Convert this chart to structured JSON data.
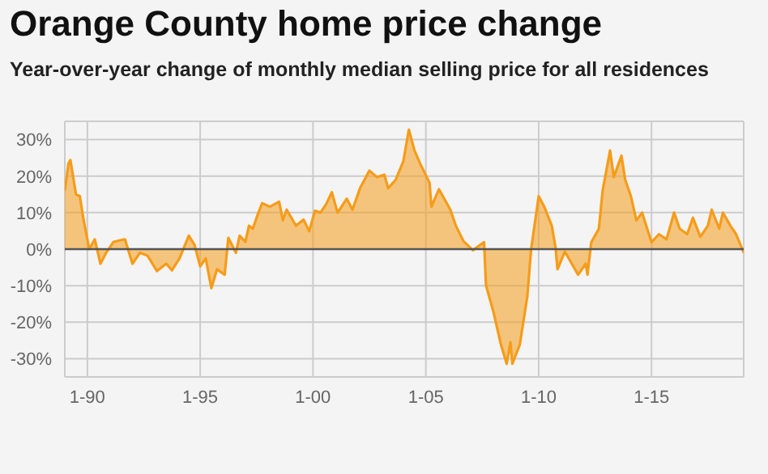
{
  "chart_data": {
    "type": "area",
    "title": "Orange County home price change",
    "subtitle": "Year-over-year change of monthly median selling price for all residences",
    "x": [
      "1989-01",
      "1989-03",
      "1989-04",
      "1989-07",
      "1989-09",
      "1989-11",
      "1990-02",
      "1990-05",
      "1990-08",
      "1990-11",
      "1991-03",
      "1991-09",
      "1992-01",
      "1992-05",
      "1992-09",
      "1993-02",
      "1993-07",
      "1993-10",
      "1994-02",
      "1994-07",
      "1994-10",
      "1995-01",
      "1995-04",
      "1995-07",
      "1995-10",
      "1996-02",
      "1996-04",
      "1996-08",
      "1996-10",
      "1997-01",
      "1997-03",
      "1997-05",
      "1997-08",
      "1997-10",
      "1998-02",
      "1998-07",
      "1998-09",
      "1998-11",
      "1999-04",
      "1999-08",
      "1999-11",
      "2000-02",
      "2000-05",
      "2000-08",
      "2000-11",
      "2001-02",
      "2001-07",
      "2001-10",
      "2002-02",
      "2002-07",
      "2002-11",
      "2003-03",
      "2003-05",
      "2003-09",
      "2004-01",
      "2004-04",
      "2004-07",
      "2004-10",
      "2005-03",
      "2005-04",
      "2005-08",
      "2006-02",
      "2006-05",
      "2006-09",
      "2007-02",
      "2007-08",
      "2007-09",
      "2008-01",
      "2008-05",
      "2008-08",
      "2008-10",
      "2008-11",
      "2009-03",
      "2009-07",
      "2009-09",
      "2010-01",
      "2010-04",
      "2010-08",
      "2010-10",
      "2010-11",
      "2011-03",
      "2011-05",
      "2011-10",
      "2012-02",
      "2012-03",
      "2012-05",
      "2012-09",
      "2012-11",
      "2013-03",
      "2013-05",
      "2013-09",
      "2013-11",
      "2014-02",
      "2014-05",
      "2014-08",
      "2015-01",
      "2015-05",
      "2015-09",
      "2016-01",
      "2016-04",
      "2016-08",
      "2016-11",
      "2017-03",
      "2017-07",
      "2017-09",
      "2018-01",
      "2018-03",
      "2018-07",
      "2018-10",
      "2019-02"
    ],
    "series": [
      {
        "color": "#f59c1a",
        "values": [
          16,
          23.4,
          24.4,
          15,
          14.5,
          8,
          0,
          2.7,
          -4,
          -1,
          2,
          2.7,
          -4,
          -1,
          -1.8,
          -6,
          -4,
          -5.8,
          -2.5,
          3.7,
          1.2,
          -4.7,
          -2.5,
          -10.7,
          -5.5,
          -7,
          3.1,
          -1,
          3.7,
          2,
          6.4,
          5.6,
          10,
          12.6,
          11.6,
          13,
          7.9,
          10.8,
          6.4,
          8.1,
          4.9,
          10.5,
          10,
          12.3,
          15.6,
          10,
          13.8,
          10.8,
          16.7,
          21.5,
          19.7,
          20.4,
          16.7,
          19,
          24,
          32.7,
          27,
          23.4,
          18.2,
          11.6,
          16.4,
          10.8,
          6.4,
          2.2,
          -0.3,
          1.9,
          -9.9,
          -17.3,
          -26.2,
          -31.4,
          -25.5,
          -31.4,
          -26.2,
          -12.9,
          0,
          14.5,
          11.6,
          6.4,
          0.4,
          -5.5,
          -0.7,
          -2.5,
          -7,
          -4,
          -7,
          1.9,
          5.6,
          16,
          27,
          19.7,
          25.6,
          19,
          14.5,
          7.9,
          10,
          1.9,
          4.1,
          2.7,
          10,
          5.6,
          4.1,
          8.6,
          3.4,
          6.4,
          10.8,
          5.6,
          10,
          6.4,
          4.1,
          -1
        ]
      }
    ],
    "xlim": [
      "1989-01",
      "2019-02"
    ],
    "xticks": [
      {
        "value": "1990-01",
        "label": "1-90"
      },
      {
        "value": "1995-01",
        "label": "1-95"
      },
      {
        "value": "2000-01",
        "label": "1-00"
      },
      {
        "value": "2005-01",
        "label": "1-05"
      },
      {
        "value": "2010-01",
        "label": "1-10"
      },
      {
        "value": "2015-01",
        "label": "1-15"
      }
    ],
    "ylim": [
      -35,
      35
    ],
    "yticks": [
      {
        "value": -30,
        "label": "-30%"
      },
      {
        "value": -20,
        "label": "-20%"
      },
      {
        "value": -10,
        "label": "-10%"
      },
      {
        "value": 0,
        "label": "0%"
      },
      {
        "value": 10,
        "label": "10%"
      },
      {
        "value": 20,
        "label": "20%"
      },
      {
        "value": 30,
        "label": "30%"
      }
    ],
    "ref_lines": [
      {
        "axis": "y",
        "value": 0,
        "color": "#555555"
      }
    ],
    "grid": true,
    "legend": false
  }
}
